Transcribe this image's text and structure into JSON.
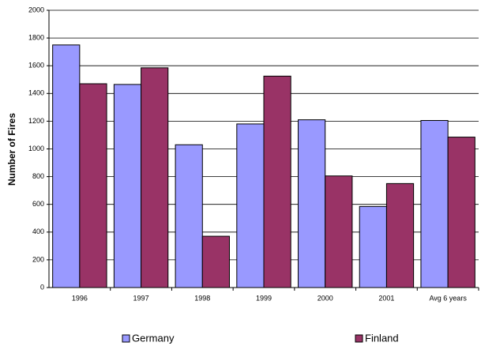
{
  "chart_data": {
    "type": "bar",
    "y_label": "Number of Fires",
    "categories": [
      "1996",
      "1997",
      "1998",
      "1999",
      "2000",
      "2001",
      "Avg 6 years"
    ],
    "series": [
      {
        "name": "Germany",
        "color": "#9999ff",
        "values": [
          1750,
          1465,
          1030,
          1180,
          1210,
          585,
          1205
        ]
      },
      {
        "name": "Finland",
        "color": "#993366",
        "values": [
          1470,
          1585,
          370,
          1525,
          805,
          750,
          1085
        ]
      }
    ],
    "ylim": [
      0,
      2000
    ],
    "yticks": [
      0,
      200,
      400,
      600,
      800,
      1000,
      1200,
      1400,
      1600,
      1800,
      2000
    ],
    "grid": true,
    "legend": "bottom"
  }
}
